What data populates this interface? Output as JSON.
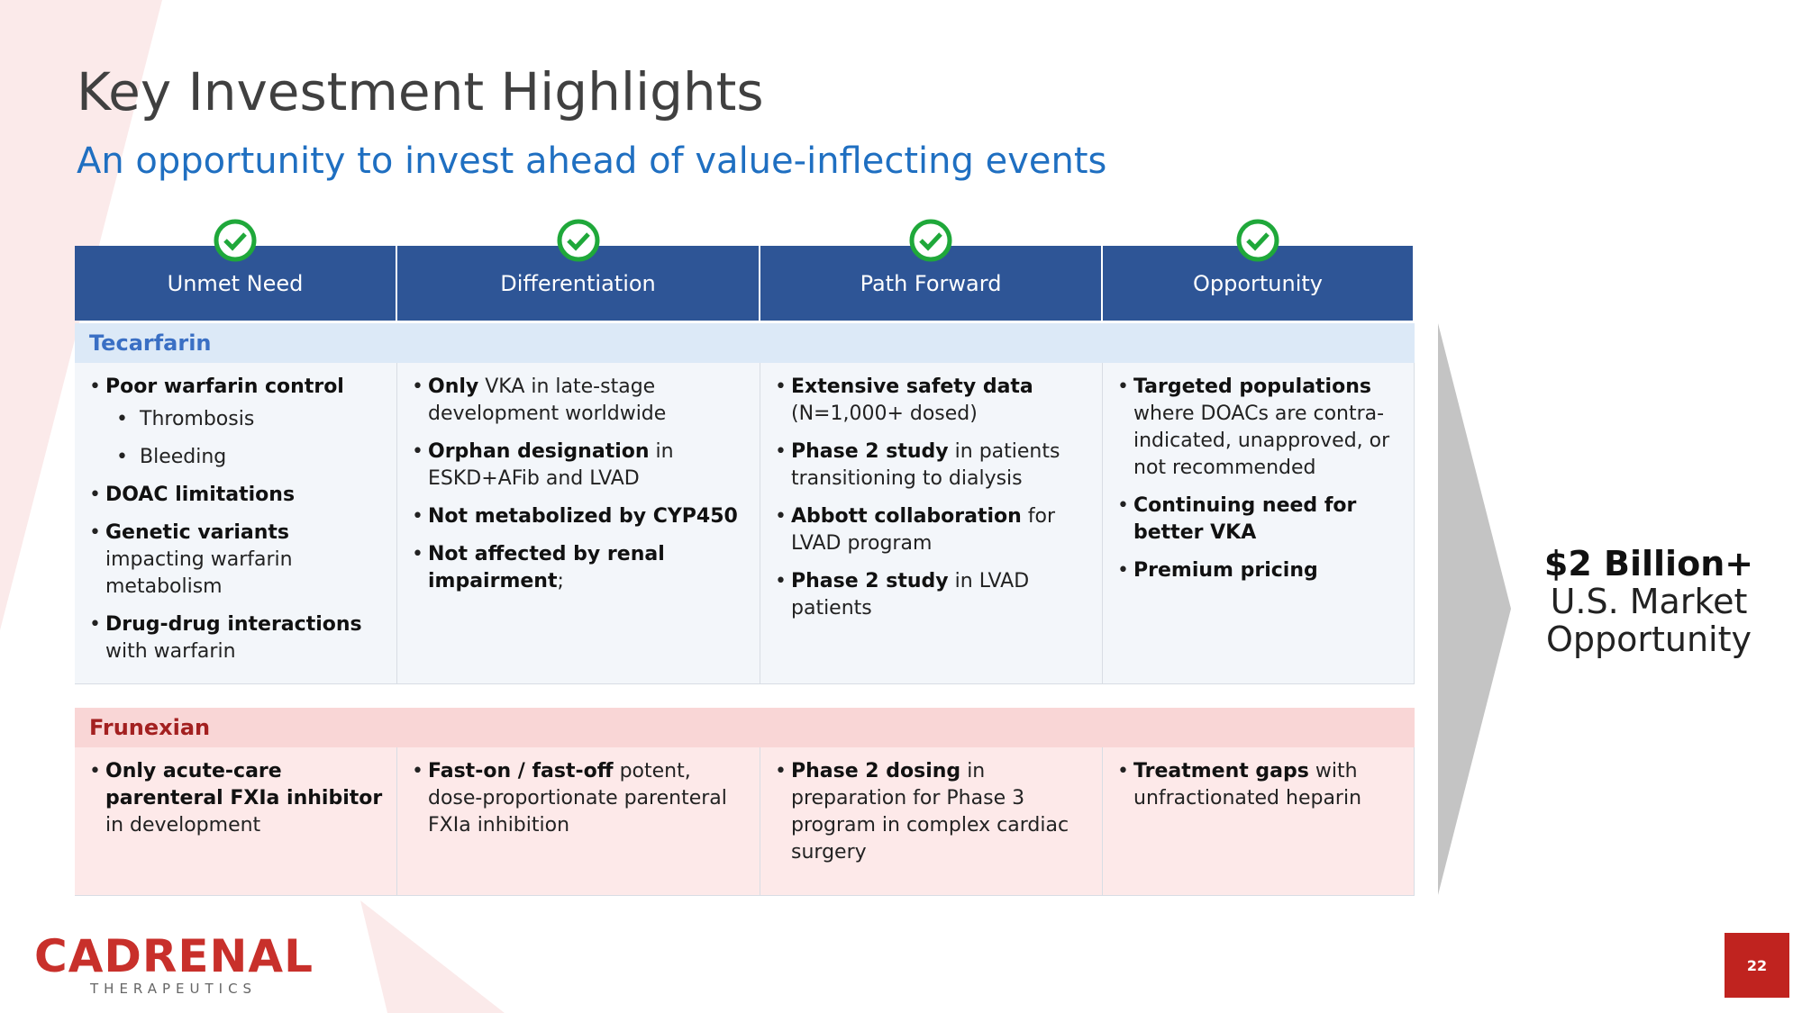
{
  "header": {
    "title": "Key Investment Highlights",
    "subtitle": "An opportunity to invest ahead of value-inflecting events"
  },
  "table": {
    "columns": [
      "Unmet Need",
      "Differentiation",
      "Path Forward",
      "Opportunity"
    ],
    "sections": [
      {
        "name": "Tecarfarin",
        "cells": [
          [
            {
              "bold": "Poor warfarin control",
              "items": [
                "Thrombosis",
                "Bleeding"
              ]
            },
            {
              "bold": "DOAC limitations"
            },
            {
              "bold": "Genetic variants",
              "text": "impacting warfarin metabolism"
            },
            {
              "bold": "Drug-drug interactions",
              "text": "with warfarin"
            }
          ],
          [
            {
              "bold": "Only",
              "text": "VKA in late-stage development worldwide"
            },
            {
              "bold": "Orphan designation",
              "text": "in ESKD+AFib and LVAD"
            },
            {
              "bold": "Not metabolized by CYP450"
            },
            {
              "bold": "Not affected by renal impairment",
              "text": ";"
            }
          ],
          [
            {
              "bold": "Extensive safety data",
              "text": "(N=1,000+ dosed)"
            },
            {
              "bold": "Phase 2 study",
              "text": "in patients transitioning to dialysis"
            },
            {
              "bold": "Abbott collaboration",
              "text": "for LVAD program"
            },
            {
              "bold": "Phase 2 study",
              "text": "in LVAD patients"
            }
          ],
          [
            {
              "bold": "Targeted populations",
              "text": "where DOACs are contra-indicated, unapproved, or not recommended"
            },
            {
              "bold": "Continuing need for better VKA"
            },
            {
              "bold": "Premium pricing"
            }
          ]
        ]
      },
      {
        "name": "Frunexian",
        "cells": [
          [
            {
              "bold": "Only acute-care parenteral FXIa inhibitor",
              "text": "in development"
            }
          ],
          [
            {
              "bold": "Fast-on / fast-off",
              "text": "potent, dose-proportionate parenteral FXIa inhibition"
            }
          ],
          [
            {
              "bold": "Phase 2 dosing",
              "text": "in preparation for Phase 3 program in complex cardiac surgery"
            }
          ],
          [
            {
              "bold": "Treatment gaps",
              "text": "with unfractionated heparin"
            }
          ]
        ]
      }
    ]
  },
  "callout": {
    "value": "$2 Billion+",
    "label": "U.S. Market Opportunity"
  },
  "logo": {
    "name": "CADRENAL",
    "tagline": "THERAPEUTICS"
  },
  "page_number": 22
}
